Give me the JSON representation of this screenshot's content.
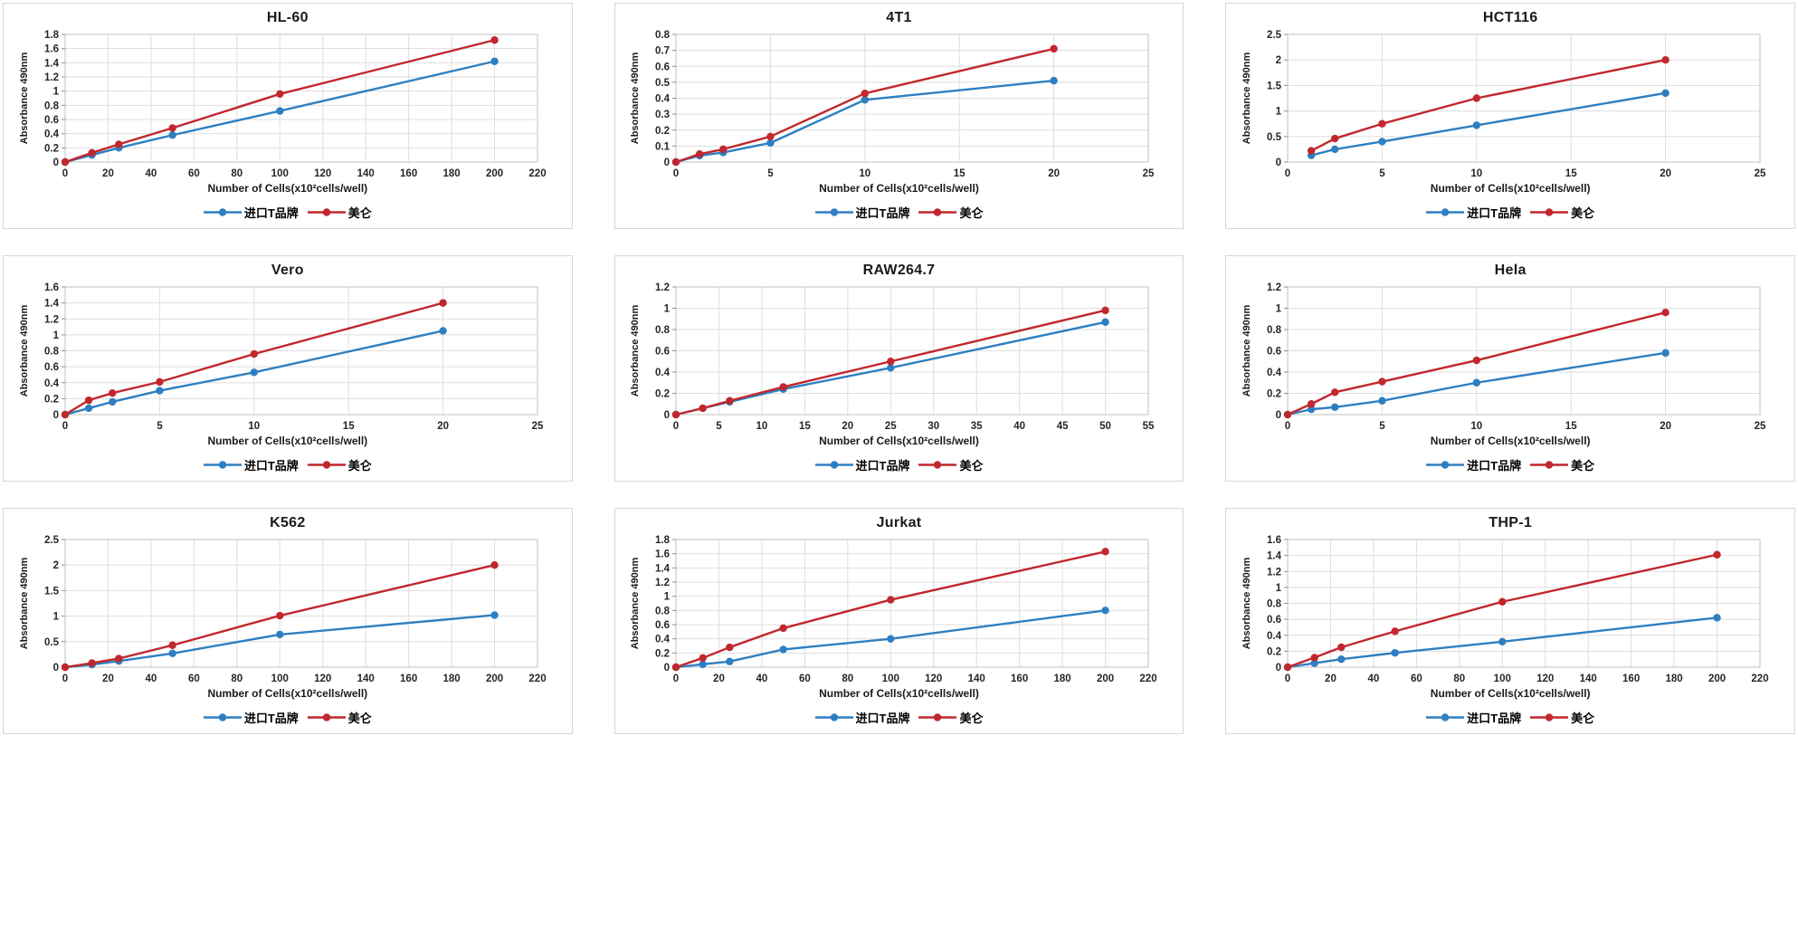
{
  "axis": {
    "xlabel": "Number of Cells(x10²cells/well)",
    "ylabel": "Absorbance 490nm"
  },
  "legend": {
    "series1_label": "进口T品牌",
    "series2_label": "美仑"
  },
  "colors": {
    "series1_blue": "#2E7FC1",
    "series2_red": "#C1272D"
  },
  "chart_data": [
    {
      "type": "line",
      "title": "HL-60",
      "xlabel": "Number of Cells(x10²cells/well)",
      "ylabel": "Absorbance 490nm",
      "xlim": [
        0,
        220
      ],
      "xtick_step": 20,
      "ylim": [
        0,
        1.8
      ],
      "ytick_step": 0.2,
      "grid": true,
      "legend_position": "bottom",
      "x": [
        0,
        12.5,
        25,
        50,
        100,
        200
      ],
      "series": [
        {
          "name": "进口T品牌",
          "color": "#2E7FC1",
          "values": [
            0,
            0.1,
            0.2,
            0.38,
            0.72,
            1.42
          ]
        },
        {
          "name": "美仑",
          "color": "#C1272D",
          "values": [
            0,
            0.13,
            0.25,
            0.48,
            0.96,
            1.72
          ]
        }
      ]
    },
    {
      "type": "line",
      "title": "4T1",
      "xlabel": "Number of Cells(x10²cells/well)",
      "ylabel": "Absorbance 490nm",
      "xlim": [
        0,
        25
      ],
      "xtick_step": 5,
      "ylim": [
        0,
        0.8
      ],
      "ytick_step": 0.1,
      "grid": true,
      "legend_position": "bottom",
      "x": [
        0,
        1.25,
        2.5,
        5,
        10,
        20
      ],
      "series": [
        {
          "name": "进口T品牌",
          "color": "#2E7FC1",
          "values": [
            0,
            0.04,
            0.06,
            0.12,
            0.39,
            0.51
          ]
        },
        {
          "name": "美仑",
          "color": "#C1272D",
          "values": [
            0,
            0.05,
            0.08,
            0.16,
            0.43,
            0.71
          ]
        }
      ]
    },
    {
      "type": "line",
      "title": "HCT116",
      "xlabel": "Number of Cells(x10²cells/well)",
      "ylabel": "Absorbance 490nm",
      "xlim": [
        0,
        25
      ],
      "xtick_step": 5,
      "ylim": [
        0,
        2.5
      ],
      "ytick_step": 0.5,
      "grid": true,
      "legend_position": "bottom",
      "x": [
        1.25,
        2.5,
        5,
        10,
        20
      ],
      "series": [
        {
          "name": "进口T品牌",
          "color": "#2E7FC1",
          "values": [
            0.13,
            0.25,
            0.4,
            0.72,
            1.35
          ]
        },
        {
          "name": "美仑",
          "color": "#C1272D",
          "values": [
            0.22,
            0.46,
            0.75,
            1.25,
            2.0
          ]
        }
      ]
    },
    {
      "type": "line",
      "title": "Vero",
      "xlabel": "Number of Cells(x10²cells/well)",
      "ylabel": "Absorbance 490nm",
      "xlim": [
        0,
        25
      ],
      "xtick_step": 5,
      "ylim": [
        0,
        1.6
      ],
      "ytick_step": 0.2,
      "grid": true,
      "legend_position": "bottom",
      "x": [
        0,
        1.25,
        2.5,
        5,
        10,
        20
      ],
      "series": [
        {
          "name": "进口T品牌",
          "color": "#2E7FC1",
          "values": [
            0,
            0.08,
            0.16,
            0.3,
            0.53,
            1.05
          ]
        },
        {
          "name": "美仑",
          "color": "#C1272D",
          "values": [
            0,
            0.18,
            0.27,
            0.41,
            0.76,
            1.4
          ]
        }
      ]
    },
    {
      "type": "line",
      "title": "RAW264.7",
      "xlabel": "Number of Cells(x10²cells/well)",
      "ylabel": "Absorbance 490nm",
      "xlim": [
        0,
        55
      ],
      "xtick_step": 5,
      "ylim": [
        0,
        1.2
      ],
      "ytick_step": 0.2,
      "grid": true,
      "legend_position": "bottom",
      "x": [
        0,
        3.125,
        6.25,
        12.5,
        25,
        50
      ],
      "series": [
        {
          "name": "进口T品牌",
          "color": "#2E7FC1",
          "values": [
            0,
            0.06,
            0.12,
            0.24,
            0.44,
            0.87
          ]
        },
        {
          "name": "美仑",
          "color": "#C1272D",
          "values": [
            0,
            0.06,
            0.13,
            0.26,
            0.5,
            0.98
          ]
        }
      ]
    },
    {
      "type": "line",
      "title": "Hela",
      "xlabel": "Number of Cells(x10²cells/well)",
      "ylabel": "Absorbance 490nm",
      "xlim": [
        0,
        25
      ],
      "xtick_step": 5,
      "ylim": [
        0,
        1.2
      ],
      "ytick_step": 0.2,
      "grid": true,
      "legend_position": "bottom",
      "x": [
        0,
        1.25,
        2.5,
        5,
        10,
        20
      ],
      "series": [
        {
          "name": "进口T品牌",
          "color": "#2E7FC1",
          "values": [
            0,
            0.05,
            0.07,
            0.13,
            0.3,
            0.58
          ]
        },
        {
          "name": "美仑",
          "color": "#C1272D",
          "values": [
            0,
            0.1,
            0.21,
            0.31,
            0.51,
            0.96
          ]
        }
      ]
    },
    {
      "type": "line",
      "title": "K562",
      "xlabel": "Number of Cells(x10²cells/well)",
      "ylabel": "Absorbance 490nm",
      "xlim": [
        0,
        220
      ],
      "xtick_step": 20,
      "ylim": [
        0,
        2.5
      ],
      "ytick_step": 0.5,
      "grid": true,
      "legend_position": "bottom",
      "x": [
        0,
        12.5,
        25,
        50,
        100,
        200
      ],
      "series": [
        {
          "name": "进口T品牌",
          "color": "#2E7FC1",
          "values": [
            0,
            0.05,
            0.12,
            0.27,
            0.64,
            1.02
          ]
        },
        {
          "name": "美仑",
          "color": "#C1272D",
          "values": [
            0,
            0.08,
            0.17,
            0.43,
            1.01,
            2.0
          ]
        }
      ]
    },
    {
      "type": "line",
      "title": "Jurkat",
      "xlabel": "Number of Cells(x10²cells/well)",
      "ylabel": "Absorbance 490nm",
      "xlim": [
        0,
        220
      ],
      "xtick_step": 20,
      "ylim": [
        0,
        1.8
      ],
      "ytick_step": 0.2,
      "grid": true,
      "legend_position": "bottom",
      "x": [
        0,
        12.5,
        25,
        50,
        100,
        200
      ],
      "series": [
        {
          "name": "进口T品牌",
          "color": "#2E7FC1",
          "values": [
            0,
            0.04,
            0.08,
            0.25,
            0.4,
            0.8
          ]
        },
        {
          "name": "美仑",
          "color": "#C1272D",
          "values": [
            0,
            0.13,
            0.28,
            0.55,
            0.95,
            1.63
          ]
        }
      ]
    },
    {
      "type": "line",
      "title": "THP-1",
      "xlabel": "Number of Cells(x10²cells/well)",
      "ylabel": "Absorbance 490nm",
      "xlim": [
        0,
        220
      ],
      "xtick_step": 20,
      "ylim": [
        0,
        1.6
      ],
      "ytick_step": 0.2,
      "grid": true,
      "legend_position": "bottom",
      "x": [
        0,
        12.5,
        25,
        50,
        100,
        200
      ],
      "series": [
        {
          "name": "进口T品牌",
          "color": "#2E7FC1",
          "values": [
            0,
            0.05,
            0.1,
            0.18,
            0.32,
            0.62
          ]
        },
        {
          "name": "美仑",
          "color": "#C1272D",
          "values": [
            0,
            0.12,
            0.25,
            0.45,
            0.82,
            1.41
          ]
        }
      ]
    }
  ]
}
